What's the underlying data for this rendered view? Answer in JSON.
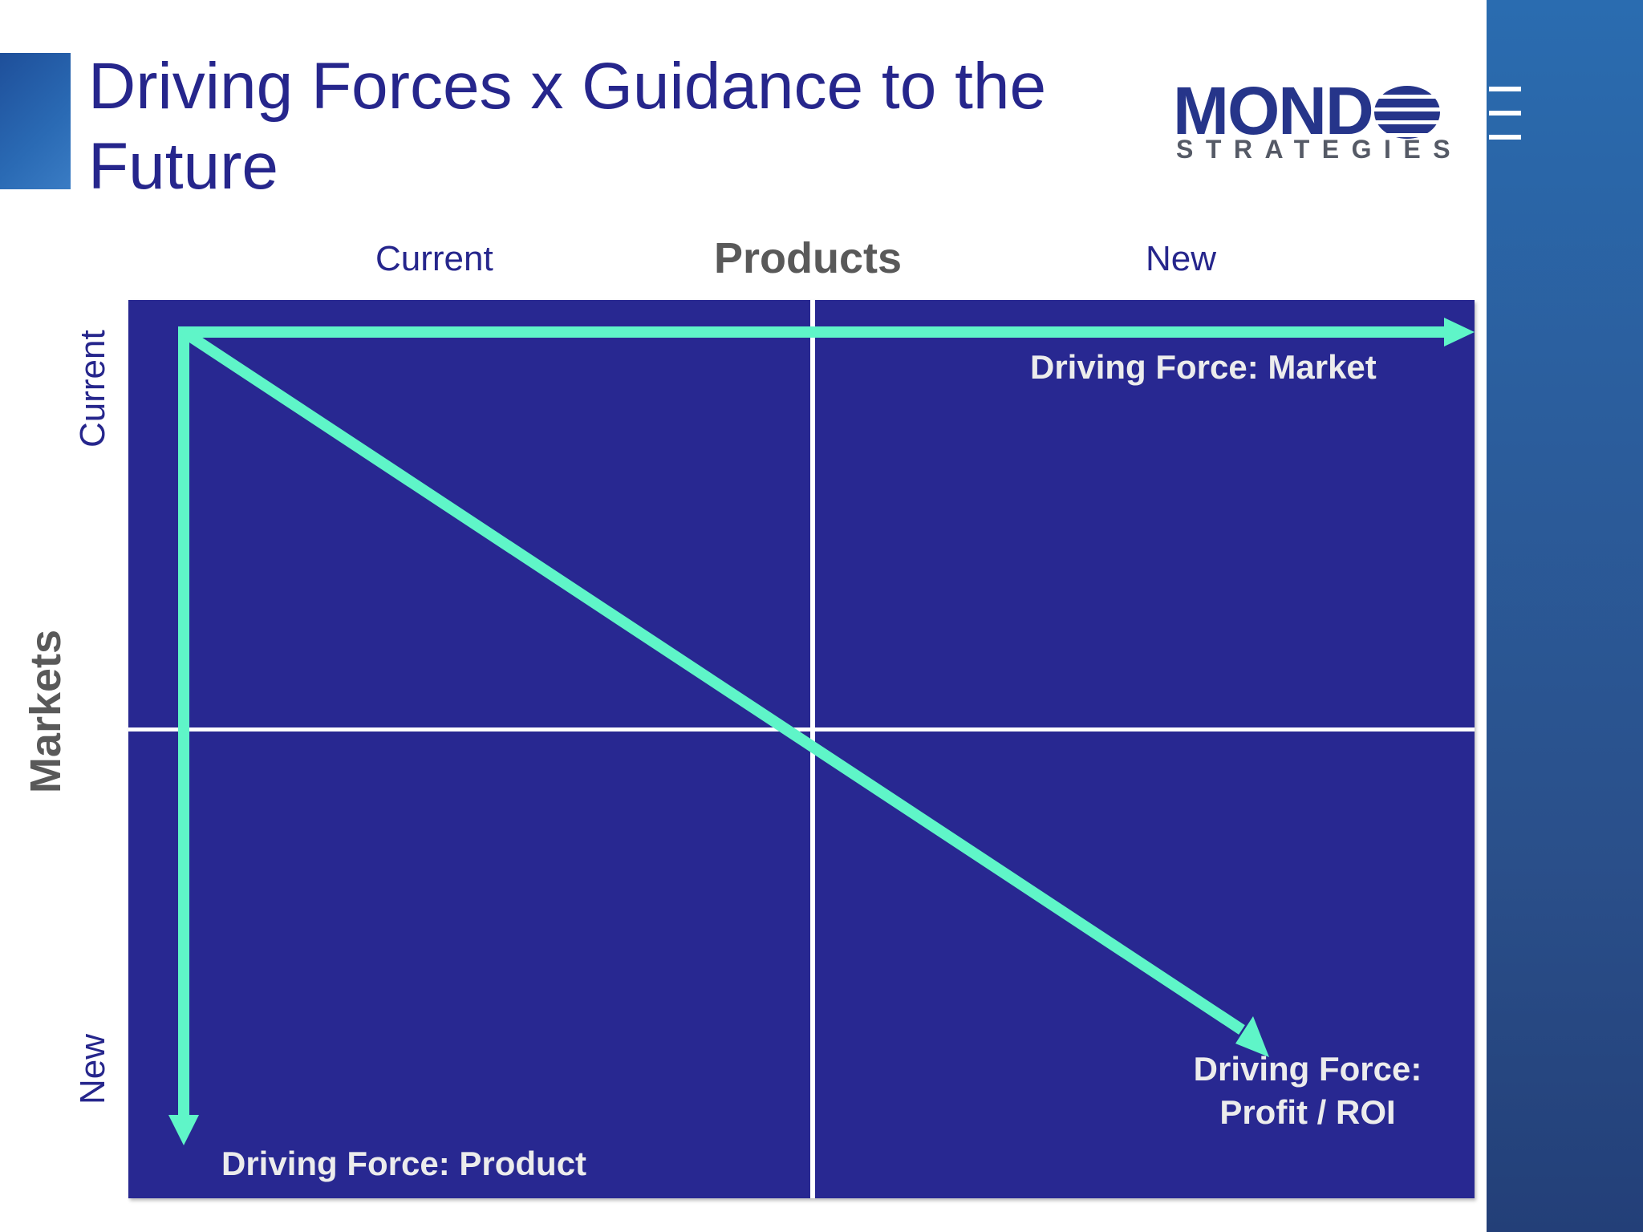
{
  "slide": {
    "title": "Driving Forces x Guidance to the Future",
    "logo": {
      "main": "MOND",
      "sub": "STRATEGIES"
    }
  },
  "matrix": {
    "x_axis_title": "Products",
    "y_axis_title": "Markets",
    "columns": [
      "Current",
      "New"
    ],
    "rows": [
      "Current",
      "New"
    ],
    "forces": {
      "market": "Driving Force: Market",
      "product": "Driving Force: Product",
      "profit_line1": "Driving Force:",
      "profit_line2": "Profit / ROI"
    }
  },
  "colors": {
    "matrix_fill": "#282891",
    "arrow": "#5ff5c8",
    "title": "#26268c"
  }
}
